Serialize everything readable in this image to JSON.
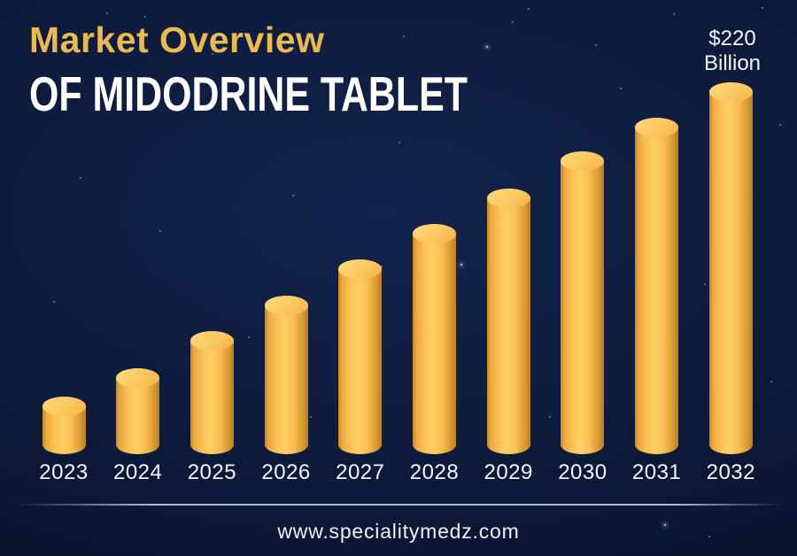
{
  "page": {
    "title_line1": "Market Overview",
    "title_line2": "OF MIDODRINE TABLET",
    "footer_url": "www.specialitymedz.com"
  },
  "annotation": {
    "line1": "$220",
    "line2": "Billion"
  },
  "colors": {
    "background_navy": "#0c1736",
    "title_gold": "#eaba50",
    "title_white": "#ffffff",
    "bar_body_light": "#ffd066",
    "bar_body_dark": "#c9882a",
    "bar_cap": "#fbc85f",
    "label_white": "#f3f5fa"
  },
  "chart_data": {
    "type": "bar",
    "title": "Market Overview OF MIDODRINE TABLET",
    "categories": [
      "2023",
      "2024",
      "2025",
      "2026",
      "2027",
      "2028",
      "2029",
      "2030",
      "2031",
      "2032"
    ],
    "values": [
      34,
      51,
      73,
      94,
      115,
      136,
      157,
      179,
      199,
      220
    ],
    "unit": "USD Billion",
    "value_labels": {
      "2032": "$220 Billion"
    },
    "xlabel": "",
    "ylabel": "",
    "ylim": [
      0,
      220
    ],
    "grid": false,
    "legend": false
  }
}
